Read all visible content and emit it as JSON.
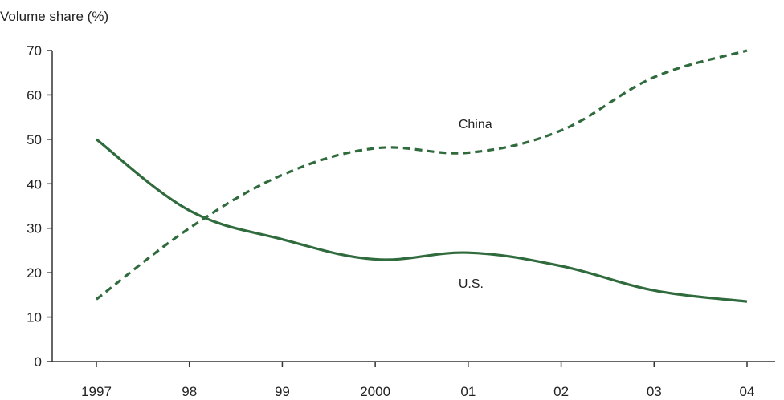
{
  "chart_data": {
    "type": "line",
    "ylabel": "Volume share (%)",
    "xlabel": "",
    "categories": [
      "1997",
      "98",
      "99",
      "2000",
      "01",
      "02",
      "03",
      "04"
    ],
    "ylim": [
      0,
      70
    ],
    "yticks": [
      0,
      10,
      20,
      30,
      40,
      50,
      60,
      70
    ],
    "grid": false,
    "series": [
      {
        "name": "China",
        "style": "dashed",
        "color": "#2f6b3c",
        "values": [
          14,
          30,
          42,
          48,
          47,
          52,
          64,
          70
        ]
      },
      {
        "name": "U.S.",
        "style": "solid",
        "color": "#2f6b3c",
        "values": [
          50,
          34,
          27.5,
          23,
          24.5,
          21.5,
          16,
          13.5
        ]
      }
    ]
  }
}
